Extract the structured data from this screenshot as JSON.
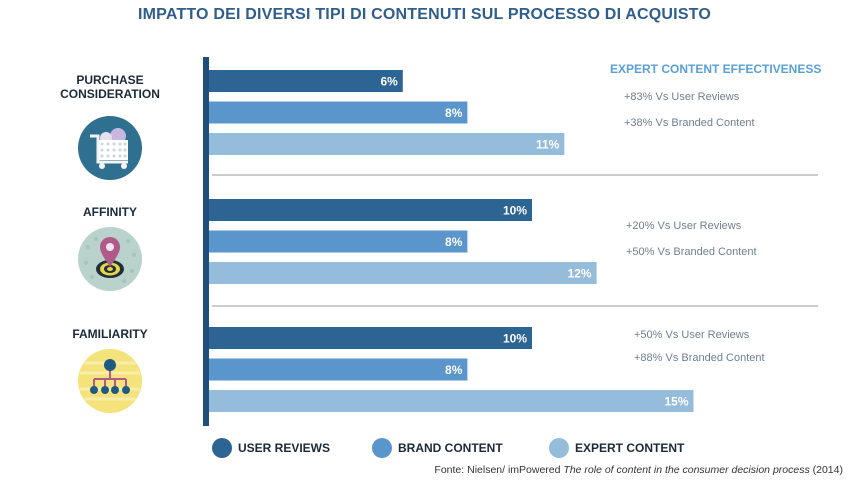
{
  "title": "IMPATTO DEI DIVERSI TIPI DI CONTENUTI SUL PROCESSO DI ACQUISTO",
  "expert_header": "EXPERT CONTENT EFFECTIVENESS",
  "categories": [
    {
      "label": "PURCHASE\nCONSIDERATION",
      "icon": "shopping-cart-icon",
      "notes": [
        "+83% Vs User Reviews",
        "+38% Vs Branded Content"
      ]
    },
    {
      "label": "AFFINITY",
      "icon": "location-target-icon",
      "notes": [
        "+20% Vs User Reviews",
        "+50% Vs Branded Content"
      ]
    },
    {
      "label": "FAMILIARITY",
      "icon": "network-hierarchy-icon",
      "notes": [
        "+50% Vs User Reviews",
        "+88% Vs Branded Content"
      ]
    }
  ],
  "legend": [
    {
      "name": "USER REVIEWS",
      "color": "#2c6494"
    },
    {
      "name": "BRAND CONTENT",
      "color": "#5a96cb"
    },
    {
      "name": "EXPERT CONTENT",
      "color": "#96bcdc"
    }
  ],
  "source": {
    "prefix": "Fonte: Nielsen/ imPowered ",
    "title": "The role of content in the consumer decision process",
    "suffix": " (2014)"
  },
  "chart_data": {
    "type": "bar",
    "orientation": "horizontal",
    "categories": [
      "PURCHASE CONSIDERATION",
      "AFFINITY",
      "FAMILIARITY"
    ],
    "series": [
      {
        "name": "USER REVIEWS",
        "values": [
          6,
          10,
          10
        ],
        "labels": [
          "6%",
          "10%",
          "10%"
        ],
        "color": "#2c6494"
      },
      {
        "name": "BRAND CONTENT",
        "values": [
          8,
          8,
          8
        ],
        "labels": [
          "8%",
          "8%",
          "8%"
        ],
        "color": "#5a96cb"
      },
      {
        "name": "EXPERT CONTENT",
        "values": [
          11,
          12,
          15
        ],
        "labels": [
          "11%",
          "12%",
          "15%"
        ],
        "color": "#96bcdc"
      }
    ],
    "value_unit": "%",
    "xlim": [
      0,
      15.5
    ],
    "grid": false,
    "legend_position": "bottom"
  }
}
